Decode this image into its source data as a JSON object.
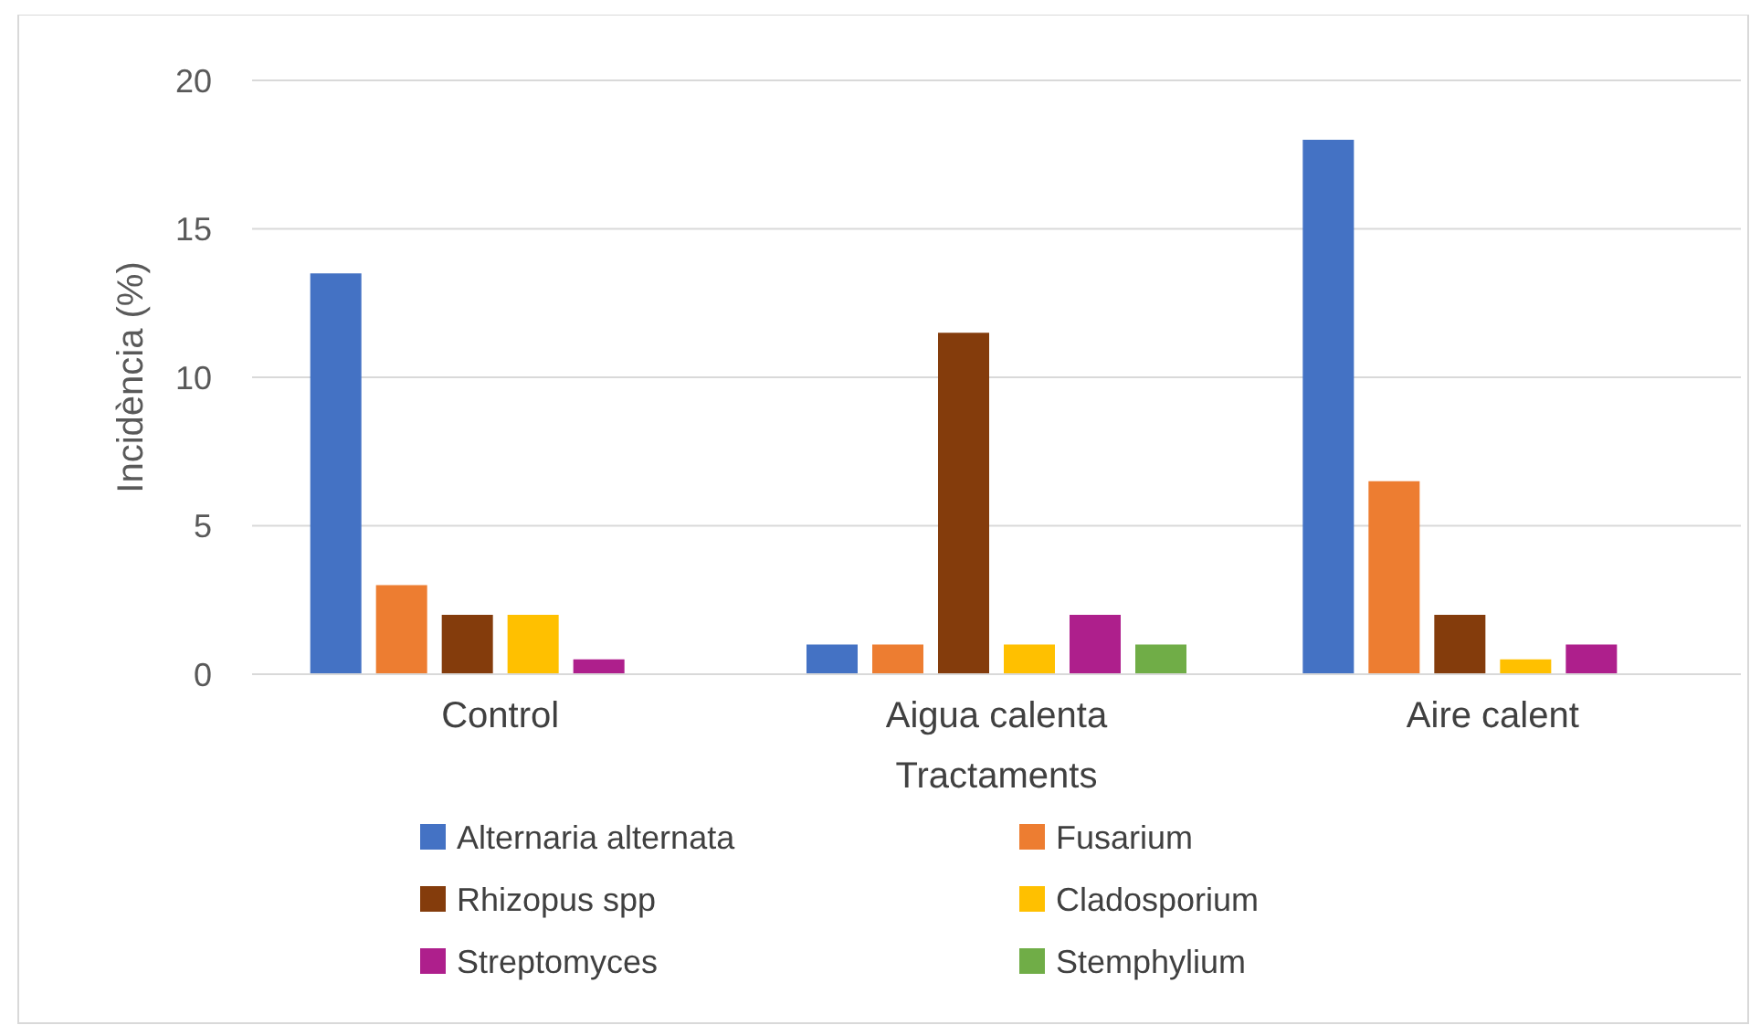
{
  "chart_data": {
    "type": "bar",
    "xlabel": "Tractaments",
    "ylabel": "Incidència (%)",
    "categories": [
      "Control",
      "Aigua calenta",
      "Aire calent"
    ],
    "series": [
      {
        "name": "Alternaria alternata",
        "color": "#4472c4",
        "values": [
          13.5,
          1,
          18
        ]
      },
      {
        "name": "Fusarium",
        "color": "#ed7d31",
        "values": [
          3,
          1,
          6.5
        ]
      },
      {
        "name": "Rhizopus spp",
        "color": "#843c0c",
        "values": [
          2,
          11.5,
          2
        ]
      },
      {
        "name": "Cladosporium",
        "color": "#ffc000",
        "values": [
          2,
          1,
          0.5
        ]
      },
      {
        "name": "Streptomyces",
        "color": "#ae1f8c",
        "values": [
          0.5,
          2,
          1
        ]
      },
      {
        "name": "Stemphylium",
        "color": "#70ad47",
        "values": [
          null,
          1,
          null
        ]
      }
    ],
    "ylim": [
      0,
      20
    ],
    "yticks": [
      0,
      5,
      10,
      15,
      20
    ],
    "grid": "y",
    "legend": "bottom"
  }
}
